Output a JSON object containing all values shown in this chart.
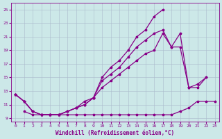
{
  "xlabel": "Windchill (Refroidissement éolien,°C)",
  "bg_color": "#cce8e8",
  "line_color": "#880088",
  "grid_color": "#aabbcc",
  "xlim": [
    -0.5,
    23.5
  ],
  "ylim": [
    8.5,
    26.0
  ],
  "xticks": [
    0,
    1,
    2,
    3,
    4,
    5,
    6,
    7,
    8,
    9,
    10,
    11,
    12,
    13,
    14,
    15,
    16,
    17,
    18,
    19,
    20,
    21,
    22,
    23
  ],
  "yticks": [
    9,
    11,
    13,
    15,
    17,
    19,
    21,
    23,
    25
  ],
  "line_spike_x": [
    0,
    1,
    2,
    3,
    4,
    5,
    6,
    7,
    8,
    9,
    10,
    11,
    12,
    13,
    14,
    15,
    16,
    17
  ],
  "line_spike_y": [
    12.5,
    11.5,
    10.0,
    9.5,
    9.5,
    9.5,
    10.0,
    10.5,
    11.0,
    12.0,
    15.0,
    16.5,
    17.5,
    19.0,
    21.0,
    22.0,
    24.0,
    25.0
  ],
  "line_upper_x": [
    0,
    1,
    2,
    3,
    4,
    5,
    6,
    7,
    8,
    9,
    10,
    11,
    12,
    13,
    14,
    15,
    16,
    17,
    18,
    19,
    20,
    21,
    22
  ],
  "line_upper_y": [
    12.5,
    11.5,
    10.0,
    9.5,
    9.5,
    9.5,
    10.0,
    10.5,
    11.0,
    12.0,
    14.5,
    15.5,
    16.5,
    18.0,
    19.5,
    20.5,
    21.5,
    22.0,
    19.5,
    21.5,
    13.5,
    14.0,
    15.0
  ],
  "line_mid_x": [
    0,
    1,
    2,
    3,
    4,
    5,
    6,
    7,
    8,
    9,
    10,
    11,
    12,
    13,
    14,
    15,
    16,
    17,
    18,
    19,
    20,
    21,
    22
  ],
  "line_mid_y": [
    12.5,
    11.5,
    10.0,
    9.5,
    9.5,
    9.5,
    10.0,
    10.5,
    11.5,
    12.0,
    13.5,
    14.5,
    15.5,
    16.5,
    17.5,
    18.5,
    19.0,
    21.5,
    19.5,
    19.5,
    13.5,
    13.5,
    15.0
  ],
  "line_flat_x": [
    1,
    2,
    3,
    4,
    5,
    6,
    7,
    8,
    9,
    10,
    11,
    12,
    13,
    14,
    15,
    16,
    17,
    18,
    19,
    20,
    21,
    22,
    23
  ],
  "line_flat_y": [
    10.0,
    9.5,
    9.5,
    9.5,
    9.5,
    9.5,
    9.5,
    9.5,
    9.5,
    9.5,
    9.5,
    9.5,
    9.5,
    9.5,
    9.5,
    9.5,
    9.5,
    9.5,
    10.0,
    10.5,
    11.5,
    11.5,
    11.5
  ]
}
